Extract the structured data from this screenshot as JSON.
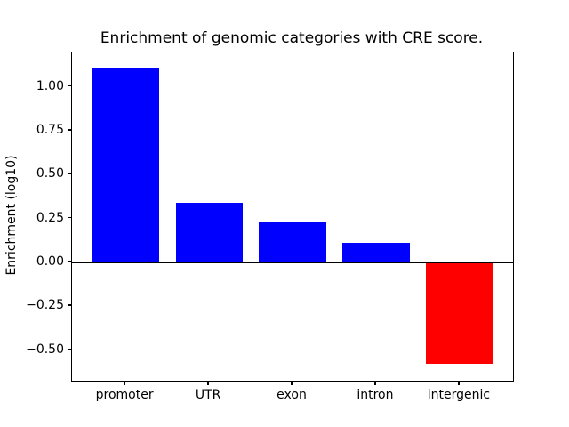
{
  "figure": {
    "background_color": "#ffffff",
    "text_color": "#000000"
  },
  "chart_data": {
    "type": "bar",
    "title": "Enrichment of genomic categories with CRE score.",
    "xlabel": "",
    "ylabel": "Enrichment (log10)",
    "categories": [
      "promoter",
      "UTR",
      "exon",
      "intron",
      "intergenic"
    ],
    "values": [
      1.11,
      0.34,
      0.23,
      0.11,
      -0.58
    ],
    "bar_colors": [
      "#0000ff",
      "#0000ff",
      "#0000ff",
      "#0000ff",
      "#ff0000"
    ],
    "positive_color": "#0000ff",
    "negative_color": "#ff0000",
    "bar_width": 0.8,
    "xlim": [
      -0.64,
      4.64
    ],
    "ylim": [
      -0.675,
      1.195
    ],
    "yticks": [
      1.0,
      0.75,
      0.5,
      0.25,
      0.0,
      -0.25,
      -0.5
    ],
    "ytick_labels": [
      "1.00",
      "0.75",
      "0.50",
      "0.25",
      "0.00",
      "−0.25",
      "−0.50"
    ],
    "grid": false,
    "legend": null,
    "zero_line": true,
    "zero_line_color": "#000000"
  }
}
